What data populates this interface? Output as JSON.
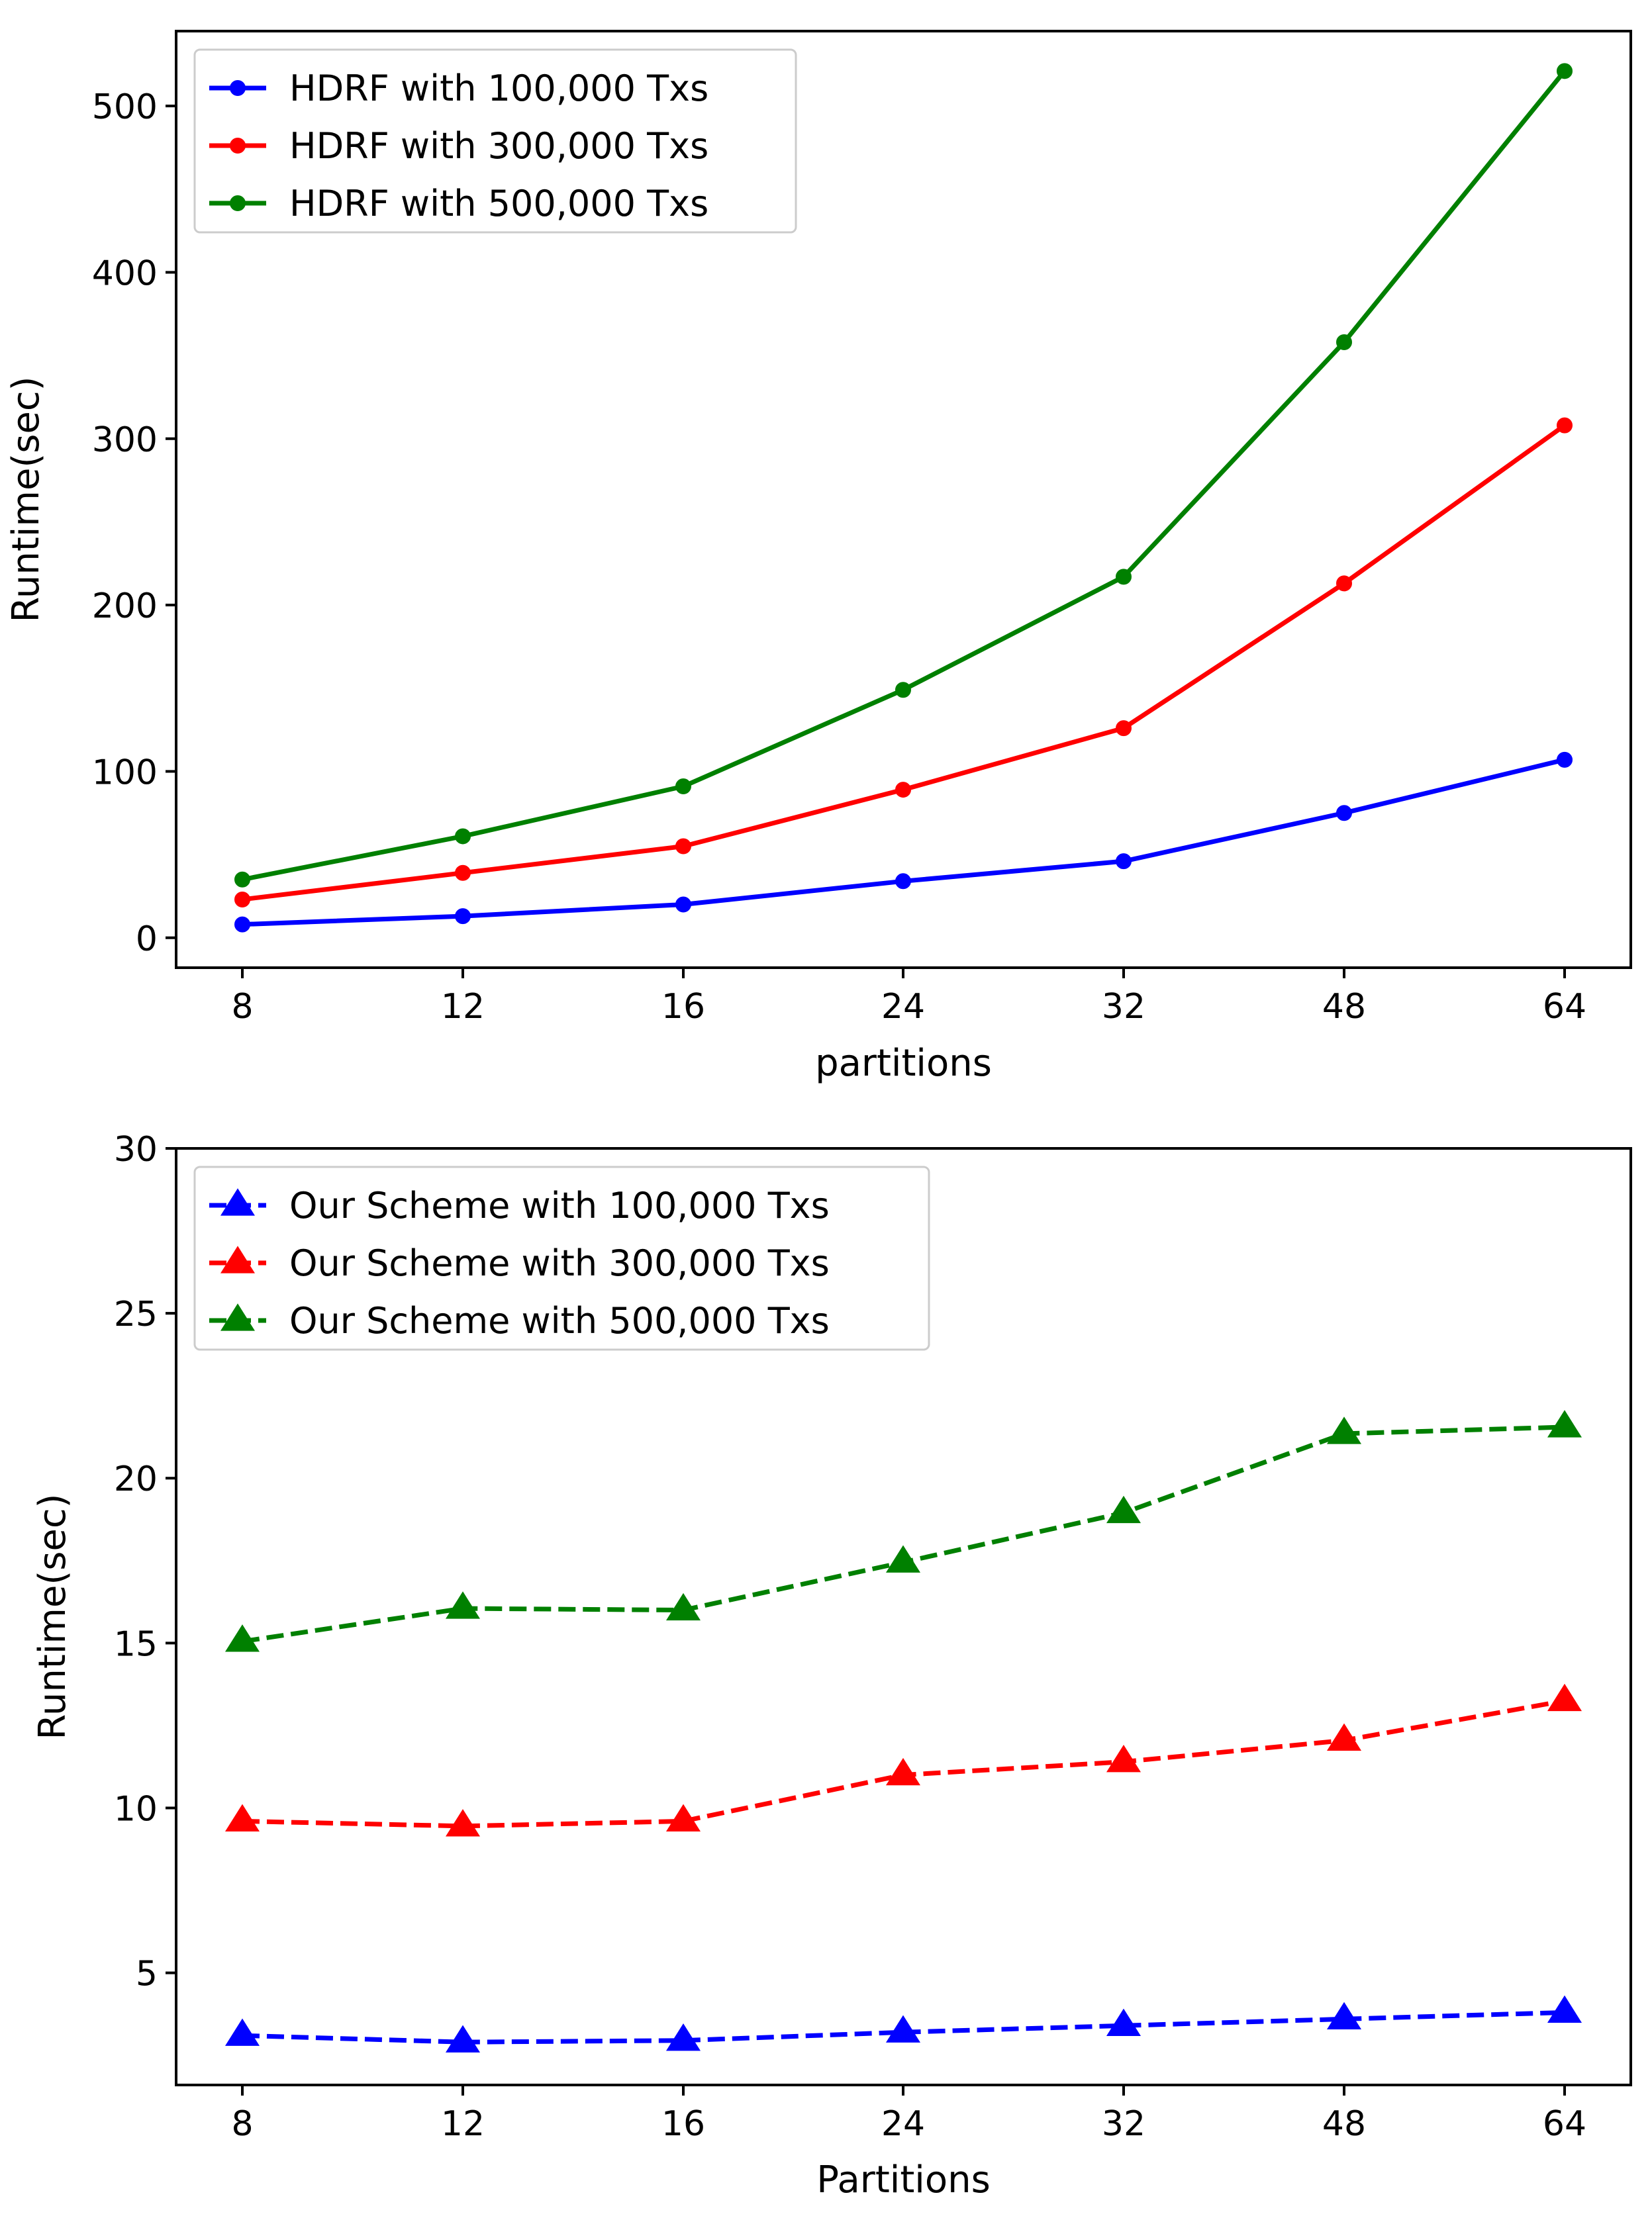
{
  "chart_data": [
    {
      "type": "line",
      "title": "",
      "xlabel": "partitions",
      "ylabel": "Runtime(sec)",
      "categories": [
        "8",
        "12",
        "16",
        "24",
        "32",
        "48",
        "64"
      ],
      "ylim": [
        -18,
        545
      ],
      "yticks": [
        0,
        100,
        200,
        300,
        400,
        500
      ],
      "grid": false,
      "legend_position": "top-left",
      "series": [
        {
          "name": "HDRF with 100,000 Txs",
          "color": "#0000ff",
          "linestyle": "solid",
          "marker": "circle",
          "values": [
            8,
            13,
            20,
            34,
            46,
            75,
            107
          ]
        },
        {
          "name": "HDRF with 300,000 Txs",
          "color": "#ff0000",
          "linestyle": "solid",
          "marker": "circle",
          "values": [
            23,
            39,
            55,
            89,
            126,
            213,
            308
          ]
        },
        {
          "name": "HDRF with 500,000 Txs",
          "color": "#008000",
          "linestyle": "solid",
          "marker": "circle",
          "values": [
            35,
            61,
            91,
            149,
            217,
            358,
            521
          ]
        }
      ]
    },
    {
      "type": "line",
      "title": "",
      "xlabel": "Partitions",
      "ylabel": "Runtime(sec)",
      "categories": [
        "8",
        "12",
        "16",
        "24",
        "32",
        "48",
        "64"
      ],
      "ylim": [
        1.6,
        30
      ],
      "yticks": [
        5,
        10,
        15,
        20,
        25,
        30
      ],
      "grid": false,
      "legend_position": "top-left",
      "series": [
        {
          "name": "Our Scheme with 100,000 Txs",
          "color": "#0000ff",
          "linestyle": "dashed",
          "marker": "triangle",
          "values": [
            3.1,
            2.9,
            2.95,
            3.2,
            3.4,
            3.6,
            3.8
          ]
        },
        {
          "name": "Our Scheme with 300,000 Txs",
          "color": "#ff0000",
          "linestyle": "dashed",
          "marker": "triangle",
          "values": [
            9.6,
            9.45,
            9.6,
            11.0,
            11.4,
            12.05,
            13.25
          ]
        },
        {
          "name": "Our Scheme with 500,000 Txs",
          "color": "#008000",
          "linestyle": "dashed",
          "marker": "triangle",
          "values": [
            15.05,
            16.05,
            16.0,
            17.45,
            18.95,
            21.35,
            21.55
          ]
        }
      ]
    }
  ]
}
